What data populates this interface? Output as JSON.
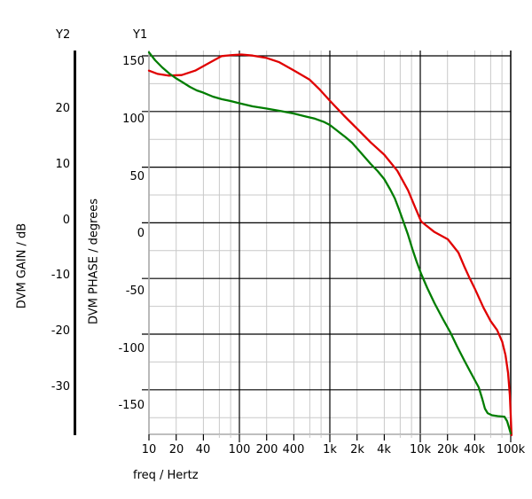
{
  "axis_headers": {
    "y2": "Y2",
    "y1": "Y1"
  },
  "axis_titles": {
    "y2": "DVM GAIN / dB",
    "y1": "DVM PHASE / degrees",
    "x": "freq / Hertz"
  },
  "colors": {
    "gain_curve": "#e00000",
    "phase_curve": "#007d00",
    "grid_major": "#000000",
    "grid_minor": "#c9c9c9",
    "axis_gray": "#a9a9a9",
    "axis_black": "#000000"
  },
  "chart_data": {
    "type": "line",
    "title": "",
    "xlabel": "freq / Hertz",
    "x_axis": {
      "scale": "log",
      "min": 10,
      "max": 100000,
      "tick_labels": [
        "10",
        "20",
        "40",
        "100",
        "200",
        "400",
        "1k",
        "2k",
        "4k",
        "10k",
        "20k",
        "40k",
        "100k"
      ],
      "tick_values": [
        10,
        20,
        40,
        100,
        200,
        400,
        1000,
        2000,
        4000,
        10000,
        20000,
        40000,
        100000
      ],
      "minor_tick_values": [
        60,
        80,
        600,
        800,
        6000,
        8000,
        60000,
        80000
      ]
    },
    "y_axes": [
      {
        "id": "Y2",
        "title": "DVM GAIN / dB",
        "tick_labels": [
          "20",
          "10",
          "0",
          "-10",
          "-20",
          "-30"
        ],
        "tick_values": [
          20,
          10,
          0,
          -10,
          -20,
          -30
        ],
        "range": [
          -38.6,
          30.6
        ]
      },
      {
        "id": "Y1",
        "title": "DVM PHASE / degrees",
        "tick_labels": [
          "150",
          "100",
          "50",
          "0",
          "-50",
          "-100",
          "-150"
        ],
        "tick_values": [
          150,
          100,
          50,
          0,
          -50,
          -100,
          -150
        ],
        "range": [
          -174.5,
          160.3
        ]
      }
    ],
    "grid": {
      "visible": true,
      "major_every_y1_degrees": 50,
      "minor_every_y1_degrees": 25,
      "x_lines_per_decade": [
        1,
        2,
        4,
        6,
        8
      ]
    },
    "legend": {
      "visible": false
    },
    "series": [
      {
        "name": "DVM GAIN",
        "axis": "Y2",
        "unit": "dB",
        "color": "#e00000",
        "points": [
          [
            10,
            26.9
          ],
          [
            12.5,
            26.3
          ],
          [
            16.4,
            26.0
          ],
          [
            23,
            26.1
          ],
          [
            32.4,
            26.9
          ],
          [
            45.4,
            28.2
          ],
          [
            63.7,
            29.5
          ],
          [
            83.5,
            29.7
          ],
          [
            105,
            29.8
          ],
          [
            140,
            29.6
          ],
          [
            197,
            29.2
          ],
          [
            276,
            28.4
          ],
          [
            404,
            26.9
          ],
          [
            595,
            25.3
          ],
          [
            763,
            23.6
          ],
          [
            1000,
            21.5
          ],
          [
            1435,
            18.8
          ],
          [
            2016,
            16.4
          ],
          [
            2833,
            14.0
          ],
          [
            3989,
            11.8
          ],
          [
            5579,
            8.9
          ],
          [
            7329,
            5.4
          ],
          [
            8800,
            2.3
          ],
          [
            10232,
            -0.2
          ],
          [
            14350,
            -2.1
          ],
          [
            20160,
            -3.4
          ],
          [
            26400,
            -5.8
          ],
          [
            30500,
            -8.2
          ],
          [
            34900,
            -10.3
          ],
          [
            39900,
            -12.2
          ],
          [
            50000,
            -15.7
          ],
          [
            60000,
            -18.1
          ],
          [
            70600,
            -19.7
          ],
          [
            80500,
            -21.8
          ],
          [
            87500,
            -24.2
          ],
          [
            93400,
            -27.4
          ],
          [
            97700,
            -31.4
          ],
          [
            99900,
            -35.0
          ],
          [
            102000,
            -38.6
          ]
        ]
      },
      {
        "name": "DVM PHASE",
        "axis": "Y1",
        "unit": "degrees",
        "color": "#007d00",
        "points": [
          [
            10,
            158.7
          ],
          [
            11.7,
            151.8
          ],
          [
            14,
            145.6
          ],
          [
            16.8,
            140.2
          ],
          [
            19.7,
            136.3
          ],
          [
            23.6,
            132.5
          ],
          [
            28.3,
            128.6
          ],
          [
            33.8,
            125.5
          ],
          [
            39.6,
            123.6
          ],
          [
            50.8,
            120.1
          ],
          [
            63.7,
            117.8
          ],
          [
            79.9,
            116.2
          ],
          [
            100,
            114.3
          ],
          [
            140,
            111.6
          ],
          [
            197,
            109.7
          ],
          [
            276,
            107.7
          ],
          [
            396,
            105.4
          ],
          [
            544,
            102.7
          ],
          [
            685,
            100.8
          ],
          [
            853,
            98.1
          ],
          [
            1000,
            95.3
          ],
          [
            1225,
            89.9
          ],
          [
            1500,
            84.5
          ],
          [
            1760,
            79.9
          ],
          [
            2016,
            74.5
          ],
          [
            2418,
            67.5
          ],
          [
            2833,
            61.3
          ],
          [
            3380,
            55.1
          ],
          [
            3989,
            48.2
          ],
          [
            4664,
            38.9
          ],
          [
            5232,
            31.2
          ],
          [
            5862,
            21.1
          ],
          [
            6560,
            10.3
          ],
          [
            7329,
            -0.5
          ],
          [
            8177,
            -12.9
          ],
          [
            9103,
            -23.7
          ],
          [
            10232,
            -34.6
          ],
          [
            11945,
            -46.9
          ],
          [
            14350,
            -60.1
          ],
          [
            17570,
            -73.2
          ],
          [
            21500,
            -85.6
          ],
          [
            25600,
            -98.0
          ],
          [
            30800,
            -110.3
          ],
          [
            36900,
            -121.9
          ],
          [
            44300,
            -133.5
          ],
          [
            48500,
            -143.6
          ],
          [
            51900,
            -152.1
          ],
          [
            55500,
            -156.0
          ],
          [
            62000,
            -157.9
          ],
          [
            72000,
            -158.7
          ],
          [
            85200,
            -159.1
          ],
          [
            91200,
            -163.0
          ],
          [
            95500,
            -168.4
          ],
          [
            99900,
            -173.8
          ]
        ]
      }
    ]
  }
}
